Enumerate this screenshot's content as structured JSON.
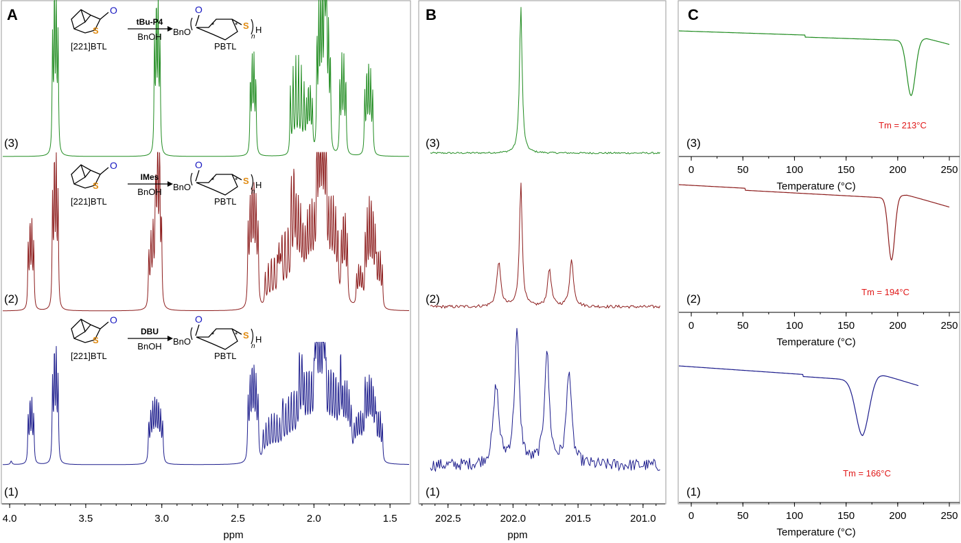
{
  "chart_data": [
    {
      "panel": "A",
      "type": "line",
      "xlabel": "ppm",
      "x_ticks": [
        "4.0",
        "3.5",
        "3.0",
        "2.5",
        "2.0",
        "1.5"
      ],
      "xlim": [
        4.05,
        1.37
      ],
      "series": [
        {
          "label": "(3)",
          "color": "#1f8b1f",
          "scheme": {
            "monomer": "[221]BTL",
            "catalyst": "tBu-P4",
            "initiator": "BnOH",
            "polymer": "PBTL",
            "ester": "BnO",
            "chain_end": "H",
            "repeat": "n"
          }
        },
        {
          "label": "(2)",
          "color": "#8b1a1a",
          "scheme": {
            "monomer": "[221]BTL",
            "catalyst": "IMes",
            "initiator": "BnOH",
            "polymer": "PBTL",
            "ester": "BnO",
            "chain_end": "H",
            "repeat": "n"
          }
        },
        {
          "label": "(1)",
          "color": "#1a1a8b",
          "scheme": {
            "monomer": "[221]BTL",
            "catalyst": "DBU",
            "initiator": "BnOH",
            "polymer": "PBTL",
            "ester": "BnO",
            "chain_end": "H",
            "repeat": "n"
          }
        }
      ]
    },
    {
      "panel": "B",
      "type": "line",
      "xlabel": "ppm",
      "x_ticks": [
        "202.5",
        "202.0",
        "201.5",
        "201.0"
      ],
      "xlim": [
        202.72,
        200.83
      ],
      "series": [
        {
          "label": "(3)",
          "color": "#1f8b1f",
          "peaks_ppm": [
            201.94
          ]
        },
        {
          "label": "(2)",
          "color": "#8b1a1a",
          "peaks_ppm": [
            202.11,
            201.94,
            201.72,
            201.55
          ]
        },
        {
          "label": "(1)",
          "color": "#1a1a8b",
          "peaks_ppm": [
            202.13,
            201.97,
            201.74,
            201.57
          ]
        }
      ]
    },
    {
      "panel": "C",
      "type": "line",
      "xlabel": "Temperature (°C)",
      "x_ticks": [
        "0",
        "50",
        "100",
        "150",
        "200",
        "250"
      ],
      "xlim": [
        -12,
        252
      ],
      "series": [
        {
          "label": "(3)",
          "color": "#1f8b1f",
          "tm_label": "Tm = 213°C",
          "tm_value": 213,
          "x_range": [
            -12,
            250
          ]
        },
        {
          "label": "(2)",
          "color": "#8b1a1a",
          "tm_label": "Tm = 194°C",
          "tm_value": 194,
          "x_range": [
            -12,
            250
          ]
        },
        {
          "label": "(1)",
          "color": "#1a1a8b",
          "tm_label": "Tm = 166°C",
          "tm_value": 166,
          "x_range": [
            -12,
            220
          ]
        }
      ]
    }
  ],
  "panels": {
    "A": {
      "letter": "A"
    },
    "B": {
      "letter": "B"
    },
    "C": {
      "letter": "C"
    }
  }
}
